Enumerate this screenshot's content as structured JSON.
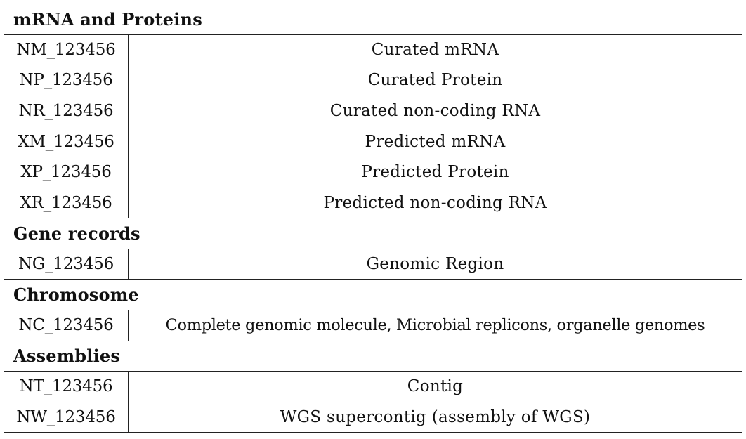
{
  "sections": [
    {
      "title": "mRNA and Proteins",
      "rows": [
        {
          "accession": "NM_123456",
          "description": "Curated mRNA"
        },
        {
          "accession": "NP_123456",
          "description": "Curated Protein"
        },
        {
          "accession": "NR_123456",
          "description": "Curated non-coding RNA"
        },
        {
          "accession": "XM_123456",
          "description": "Predicted mRNA"
        },
        {
          "accession": "XP_123456",
          "description": "Predicted Protein"
        },
        {
          "accession": "XR_123456",
          "description": "Predicted non-coding RNA"
        }
      ]
    },
    {
      "title": "Gene records",
      "rows": [
        {
          "accession": "NG_123456",
          "description": "Genomic Region"
        }
      ]
    },
    {
      "title": "Chromosome",
      "rows": [
        {
          "accession": "NC_123456",
          "description": "Complete genomic molecule, Microbial replicons, organelle genomes"
        }
      ]
    },
    {
      "title": "Assemblies",
      "rows": [
        {
          "accession": "NT_123456",
          "description": "Contig"
        },
        {
          "accession": "NW_123456",
          "description": "WGS supercontig (assembly of WGS)"
        }
      ]
    }
  ]
}
